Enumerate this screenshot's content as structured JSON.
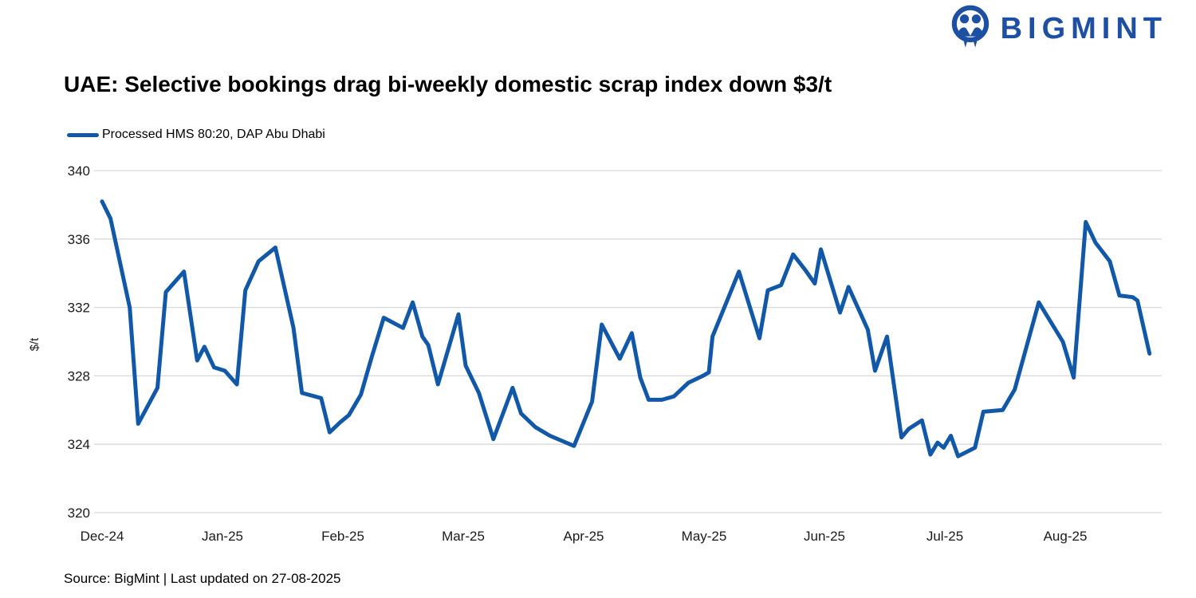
{
  "logo": {
    "text": "BIGMINT",
    "color": "#1d4fa3"
  },
  "title": "UAE: Selective bookings drag bi-weekly domestic scrap index down $3/t",
  "legend": {
    "label": "Processed HMS 80:20, DAP Abu Dhabi"
  },
  "footer": {
    "source": "Source: BigMint | Last updated on 27-08-2025"
  },
  "chart_data": {
    "type": "line",
    "title": "UAE: Selective bookings drag bi-weekly domestic scrap index down $3/t",
    "series_name": "Processed HMS 80:20, DAP Abu Dhabi",
    "ylabel": "$/t",
    "ylim": [
      320,
      340
    ],
    "yticks": [
      340,
      336,
      332,
      328,
      324,
      320
    ],
    "xticks": [
      "Dec-24",
      "Jan-25",
      "Feb-25",
      "Mar-25",
      "Apr-25",
      "May-25",
      "Jun-25",
      "Jul-25",
      "Aug-25"
    ],
    "x_unit": "fractional months after Dec-24 tick",
    "legend_position": "top-left",
    "grid": "horizontal",
    "line_color": "#1258a8",
    "grid_color": "#d9d9d9",
    "tick_color": "#1a1a1a",
    "points": [
      {
        "m": 0.0,
        "v": 338.2
      },
      {
        "m": 0.07,
        "v": 337.2
      },
      {
        "m": 0.23,
        "v": 332.0
      },
      {
        "m": 0.3,
        "v": 325.2
      },
      {
        "m": 0.46,
        "v": 327.3
      },
      {
        "m": 0.53,
        "v": 332.9
      },
      {
        "m": 0.68,
        "v": 334.1
      },
      {
        "m": 0.79,
        "v": 328.9
      },
      {
        "m": 0.85,
        "v": 329.7
      },
      {
        "m": 0.93,
        "v": 328.5
      },
      {
        "m": 1.02,
        "v": 328.3
      },
      {
        "m": 1.12,
        "v": 327.5
      },
      {
        "m": 1.19,
        "v": 333.0
      },
      {
        "m": 1.3,
        "v": 334.7
      },
      {
        "m": 1.44,
        "v": 335.5
      },
      {
        "m": 1.59,
        "v": 330.8
      },
      {
        "m": 1.66,
        "v": 327.0
      },
      {
        "m": 1.82,
        "v": 326.7
      },
      {
        "m": 1.89,
        "v": 324.7
      },
      {
        "m": 1.98,
        "v": 325.3
      },
      {
        "m": 2.05,
        "v": 325.7
      },
      {
        "m": 2.15,
        "v": 326.9
      },
      {
        "m": 2.24,
        "v": 329.1
      },
      {
        "m": 2.34,
        "v": 331.4
      },
      {
        "m": 2.5,
        "v": 330.8
      },
      {
        "m": 2.58,
        "v": 332.3
      },
      {
        "m": 2.66,
        "v": 330.3
      },
      {
        "m": 2.71,
        "v": 329.8
      },
      {
        "m": 2.79,
        "v": 327.5
      },
      {
        "m": 2.96,
        "v": 331.6
      },
      {
        "m": 3.02,
        "v": 328.6
      },
      {
        "m": 3.13,
        "v": 327.0
      },
      {
        "m": 3.25,
        "v": 324.3
      },
      {
        "m": 3.41,
        "v": 327.3
      },
      {
        "m": 3.48,
        "v": 325.8
      },
      {
        "m": 3.6,
        "v": 325.0
      },
      {
        "m": 3.72,
        "v": 324.5
      },
      {
        "m": 3.92,
        "v": 323.9
      },
      {
        "m": 4.07,
        "v": 326.5
      },
      {
        "m": 4.15,
        "v": 331.0
      },
      {
        "m": 4.3,
        "v": 329.0
      },
      {
        "m": 4.4,
        "v": 330.5
      },
      {
        "m": 4.47,
        "v": 327.9
      },
      {
        "m": 4.54,
        "v": 326.6
      },
      {
        "m": 4.65,
        "v": 326.6
      },
      {
        "m": 4.75,
        "v": 326.8
      },
      {
        "m": 4.87,
        "v": 327.6
      },
      {
        "m": 4.99,
        "v": 328.0
      },
      {
        "m": 5.04,
        "v": 328.2
      },
      {
        "m": 5.07,
        "v": 330.3
      },
      {
        "m": 5.18,
        "v": 332.2
      },
      {
        "m": 5.29,
        "v": 334.1
      },
      {
        "m": 5.46,
        "v": 330.2
      },
      {
        "m": 5.53,
        "v": 333.0
      },
      {
        "m": 5.64,
        "v": 333.3
      },
      {
        "m": 5.74,
        "v": 335.1
      },
      {
        "m": 5.84,
        "v": 334.2
      },
      {
        "m": 5.92,
        "v": 333.4
      },
      {
        "m": 5.97,
        "v": 335.4
      },
      {
        "m": 6.13,
        "v": 331.7
      },
      {
        "m": 6.2,
        "v": 333.2
      },
      {
        "m": 6.36,
        "v": 330.7
      },
      {
        "m": 6.42,
        "v": 328.3
      },
      {
        "m": 6.52,
        "v": 330.3
      },
      {
        "m": 6.64,
        "v": 324.4
      },
      {
        "m": 6.7,
        "v": 324.9
      },
      {
        "m": 6.81,
        "v": 325.4
      },
      {
        "m": 6.88,
        "v": 323.4
      },
      {
        "m": 6.94,
        "v": 324.1
      },
      {
        "m": 6.99,
        "v": 323.8
      },
      {
        "m": 7.05,
        "v": 324.5
      },
      {
        "m": 7.11,
        "v": 323.3
      },
      {
        "m": 7.25,
        "v": 323.8
      },
      {
        "m": 7.32,
        "v": 325.9
      },
      {
        "m": 7.48,
        "v": 326.0
      },
      {
        "m": 7.58,
        "v": 327.2
      },
      {
        "m": 7.78,
        "v": 332.3
      },
      {
        "m": 7.98,
        "v": 330.0
      },
      {
        "m": 8.07,
        "v": 327.9
      },
      {
        "m": 8.17,
        "v": 337.0
      },
      {
        "m": 8.25,
        "v": 335.8
      },
      {
        "m": 8.37,
        "v": 334.7
      },
      {
        "m": 8.45,
        "v": 332.7
      },
      {
        "m": 8.56,
        "v": 332.6
      },
      {
        "m": 8.6,
        "v": 332.4
      },
      {
        "m": 8.7,
        "v": 329.3
      }
    ]
  }
}
